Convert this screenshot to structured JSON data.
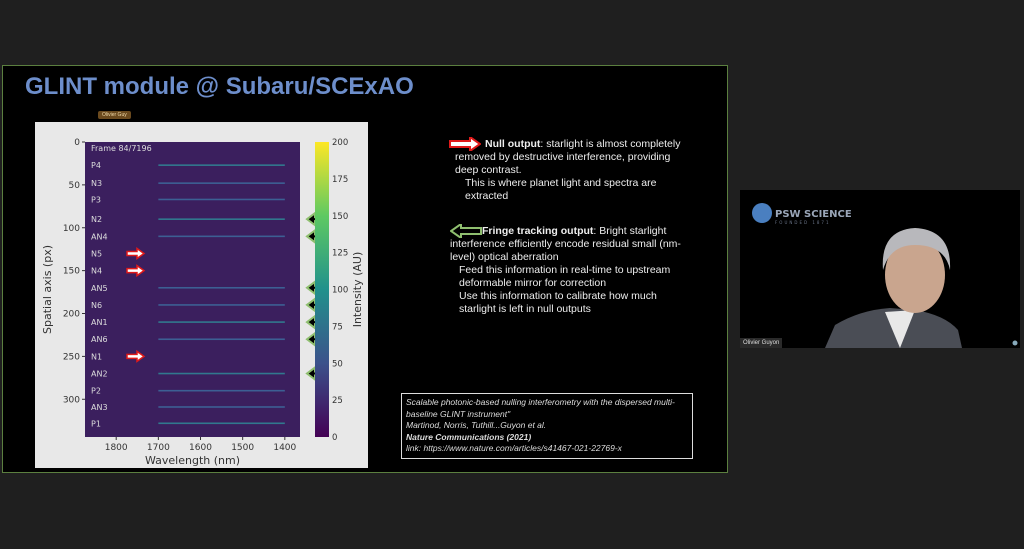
{
  "slide": {
    "title": "GLINT module @ Subaru/SCExAO",
    "presenter_tag": "Olivier Guy",
    "null_output": {
      "heading": "Null output",
      "text": ": starlight is almost completely removed by destructive interference, providing deep contrast.",
      "sub": "This is where planet light and spectra are extracted"
    },
    "fringe_output": {
      "heading": "Fringe tracking output",
      "text": ": Bright starlight interference efficiently encode residual small (nm-level) optical aberration",
      "sub1": "Feed this information in real-time to upstream deformable mirror for correction",
      "sub2": "Use this information to calibrate how much starlight is left in null outputs"
    },
    "citation": {
      "title": "Scalable photonic-based nulling interferometry with the dispersed multi-baseline GLINT instrument\"",
      "authors": "Martinod, Norris, Tuthill...Guyon et al.",
      "journal": "Nature Communications (2021)",
      "link_label": "link: ",
      "link": "https://www.nature.com/articles/s41467-021-22769-x"
    }
  },
  "chart_data": {
    "type": "heatmap",
    "annotation": "Frame 84/7196",
    "xlabel": "Wavelength (nm)",
    "ylabel": "Spatial axis (px)",
    "colorbar_label": "Intensity (AU)",
    "xlim": [
      1874,
      1364
    ],
    "ylim": [
      0,
      344
    ],
    "xticks": [
      1800,
      1700,
      1600,
      1500,
      1400
    ],
    "yticks": [
      0,
      50,
      100,
      150,
      200,
      250,
      300
    ],
    "cticks": [
      0,
      25,
      50,
      75,
      100,
      125,
      150,
      175,
      200
    ],
    "clim": [
      0,
      200
    ],
    "colormap": "viridis",
    "rows": [
      {
        "label": "P4",
        "y": 27,
        "arrow": ""
      },
      {
        "label": "N3",
        "y": 48,
        "arrow": ""
      },
      {
        "label": "P3",
        "y": 67,
        "arrow": ""
      },
      {
        "label": "N2",
        "y": 90,
        "arrow": "green"
      },
      {
        "label": "AN4",
        "y": 110,
        "arrow": "green"
      },
      {
        "label": "N5",
        "y": 130,
        "arrow": "red"
      },
      {
        "label": "N4",
        "y": 150,
        "arrow": "red"
      },
      {
        "label": "AN5",
        "y": 170,
        "arrow": "green"
      },
      {
        "label": "N6",
        "y": 190,
        "arrow": "green"
      },
      {
        "label": "AN1",
        "y": 210,
        "arrow": "green"
      },
      {
        "label": "AN6",
        "y": 230,
        "arrow": "green"
      },
      {
        "label": "N1",
        "y": 250,
        "arrow": "red"
      },
      {
        "label": "AN2",
        "y": 270,
        "arrow": "green"
      },
      {
        "label": "P2",
        "y": 290,
        "arrow": ""
      },
      {
        "label": "AN3",
        "y": 309,
        "arrow": ""
      },
      {
        "label": "P1",
        "y": 328,
        "arrow": ""
      }
    ]
  },
  "video": {
    "participant_name": "Olivier Guyon",
    "logo_text": "PSW SCIENCE",
    "logo_sub": "FOUNDED 1871"
  },
  "colors": {
    "title": "#6d8ecb",
    "slide_border": "#5b7f3f",
    "null_arrow": "#e01a1a",
    "fringe_arrow": "#8fbf6f"
  }
}
